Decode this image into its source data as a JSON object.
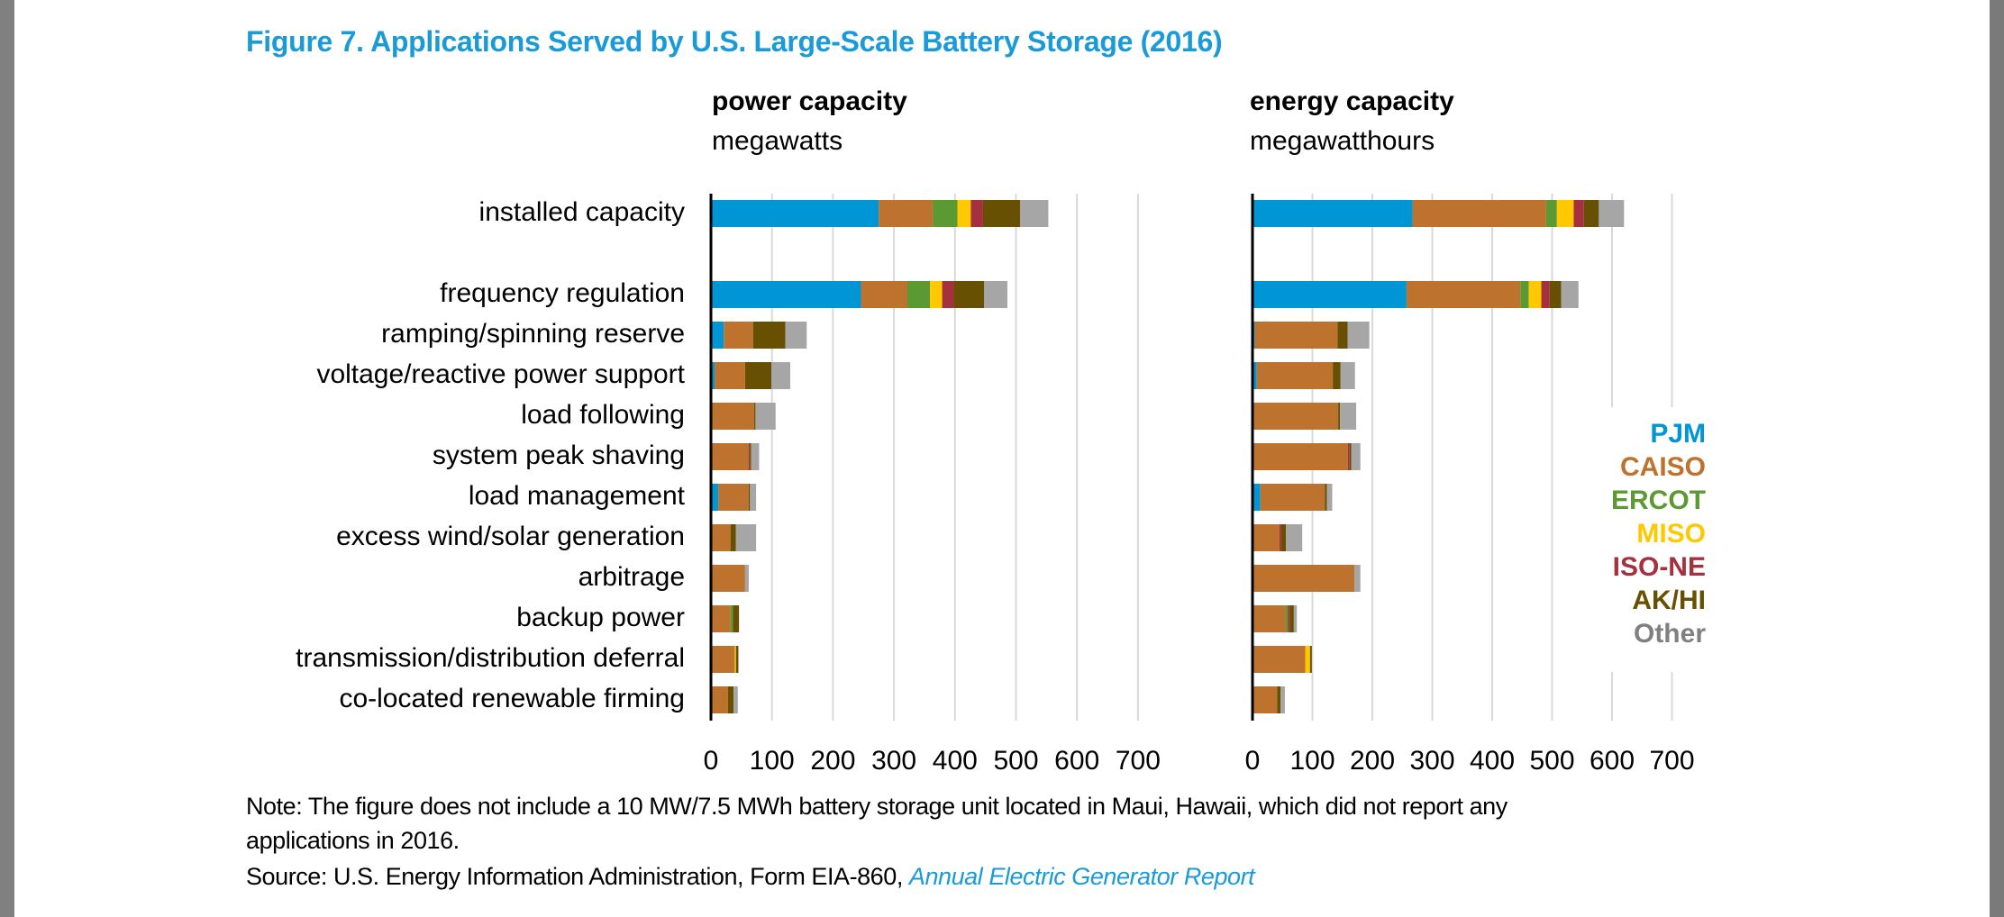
{
  "title": "Figure 7. Applications Served by U.S. Large-Scale Battery Storage (2016)",
  "note_lines": [
    "Note: The figure does not include a 10 MW/7.5 MWh battery storage unit located in Maui, Hawaii, which did not report any",
    "applications in 2016."
  ],
  "source": {
    "prefix": "Source: U.S. Energy Information Administration, Form EIA-860, ",
    "link_text": "Annual Electric Generator Report"
  },
  "colors": {
    "title": "#1a9ad6",
    "axis": "#000000",
    "grid": "#d9d9d9"
  },
  "chart_data": [
    {
      "type": "bar",
      "orientation": "horizontal",
      "stacked": true,
      "title": "power capacity",
      "xlabel": "megawatts",
      "xlim": [
        0,
        700
      ],
      "xticks": [
        0,
        100,
        200,
        300,
        400,
        500,
        600,
        700
      ],
      "grid": true,
      "categories": [
        "installed capacity",
        "frequency regulation",
        "ramping/spinning reserve",
        "voltage/reactive power support",
        "load following",
        "system peak shaving",
        "load management",
        "excess wind/solar generation",
        "arbitrage",
        "backup power",
        "transmission/distribution deferral",
        "co-located renewable firming"
      ],
      "series": [
        {
          "name": "PJM",
          "color": "#0096d6",
          "values": [
            275,
            246,
            21,
            6,
            0,
            0,
            12,
            0,
            0,
            0,
            0,
            0
          ]
        },
        {
          "name": "CAISO",
          "color": "#bd732d",
          "values": [
            89,
            76,
            48,
            50,
            71,
            62,
            50,
            32,
            56,
            32,
            39,
            28
          ]
        },
        {
          "name": "ERCOT",
          "color": "#5b9a33",
          "values": [
            40,
            37,
            0,
            0,
            0,
            0,
            0,
            0,
            0,
            4,
            0,
            0
          ]
        },
        {
          "name": "MISO",
          "color": "#ffc800",
          "values": [
            22,
            20,
            0,
            0,
            0,
            0,
            0,
            0,
            0,
            0,
            2,
            0
          ]
        },
        {
          "name": "ISO-NE",
          "color": "#a5313f",
          "values": [
            20,
            19,
            0,
            0,
            0,
            2,
            0,
            0,
            0,
            0,
            0,
            0
          ]
        },
        {
          "name": "AK/HI",
          "color": "#675002",
          "values": [
            61,
            50,
            53,
            43,
            2,
            2,
            2,
            9,
            0,
            10,
            4,
            9
          ]
        },
        {
          "name": "Other",
          "color": "#a6a6a6",
          "values": [
            46,
            38,
            35,
            31,
            33,
            13,
            10,
            33,
            6,
            0,
            0,
            7
          ]
        }
      ]
    },
    {
      "type": "bar",
      "orientation": "horizontal",
      "stacked": true,
      "title": "energy capacity",
      "xlabel": "megawatthours",
      "xlim": [
        0,
        700
      ],
      "xticks": [
        0,
        100,
        200,
        300,
        400,
        500,
        600,
        700
      ],
      "grid": true,
      "legend": {
        "position": "right",
        "entries": [
          {
            "name": "PJM",
            "color": "#0096d6"
          },
          {
            "name": "CAISO",
            "color": "#bd732d"
          },
          {
            "name": "ERCOT",
            "color": "#5b9a33"
          },
          {
            "name": "MISO",
            "color": "#ffc800"
          },
          {
            "name": "ISO-NE",
            "color": "#a5313f"
          },
          {
            "name": "AK/HI",
            "color": "#675002"
          },
          {
            "name": "Other",
            "color": "#808080"
          }
        ]
      },
      "categories": [
        "installed capacity",
        "frequency regulation",
        "ramping/spinning reserve",
        "voltage/reactive power support",
        "load following",
        "system peak shaving",
        "load management",
        "excess wind/solar generation",
        "arbitrage",
        "backup power",
        "transmission/distribution deferral",
        "co-located renewable firming"
      ],
      "series": [
        {
          "name": "PJM",
          "color": "#0096d6",
          "values": [
            267,
            257,
            4,
            7,
            0,
            0,
            13,
            0,
            0,
            0,
            0,
            0
          ]
        },
        {
          "name": "CAISO",
          "color": "#bd732d",
          "values": [
            223,
            190,
            138,
            127,
            143,
            159,
            108,
            45,
            170,
            55,
            88,
            41
          ]
        },
        {
          "name": "ERCOT",
          "color": "#5b9a33",
          "values": [
            18,
            14,
            0,
            0,
            0,
            0,
            0,
            0,
            0,
            4,
            0,
            0
          ]
        },
        {
          "name": "MISO",
          "color": "#ffc800",
          "values": [
            28,
            21,
            0,
            0,
            0,
            0,
            0,
            0,
            0,
            0,
            8,
            0
          ]
        },
        {
          "name": "ISO-NE",
          "color": "#a5313f",
          "values": [
            17,
            14,
            0,
            0,
            0,
            3,
            0,
            3,
            0,
            3,
            0,
            0
          ]
        },
        {
          "name": "AK/HI",
          "color": "#675002",
          "values": [
            25,
            19,
            17,
            13,
            3,
            3,
            3,
            8,
            0,
            7,
            3,
            6
          ]
        },
        {
          "name": "Other",
          "color": "#a6a6a6",
          "values": [
            42,
            29,
            36,
            24,
            27,
            15,
            9,
            27,
            10,
            5,
            0,
            7
          ]
        }
      ]
    }
  ]
}
